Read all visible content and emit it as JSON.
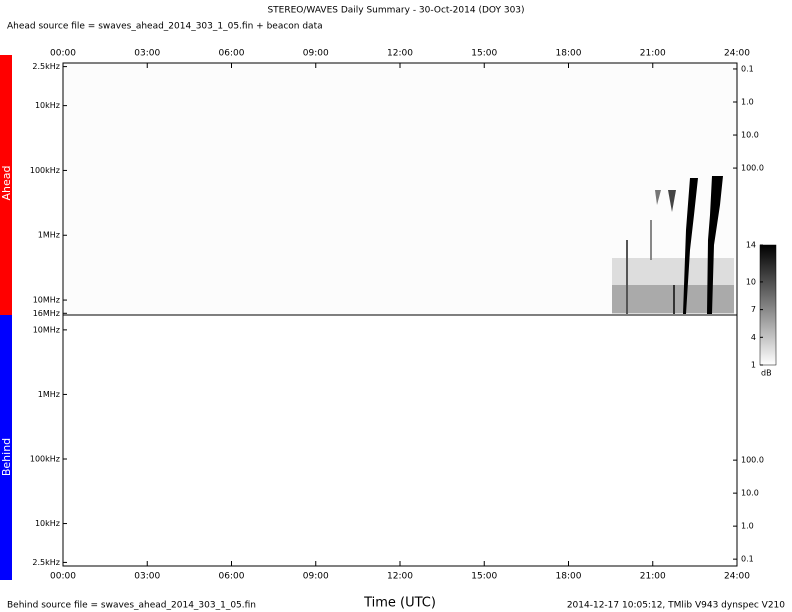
{
  "title": "STEREO/WAVES Daily Summary - 30-Oct-2014 (DOY 303)",
  "ahead_source": "Ahead source file = swaves_ahead_2014_303_1_05.fin + beacon data",
  "behind_source": "Behind source file = swaves_ahead_2014_303_1_05.fin",
  "footer": "2014-12-17 10:05:12, TMlib V943 dynspec V210",
  "chart_data": [
    {
      "type": "spectrogram",
      "name": "Ahead",
      "log": true,
      "xlim": [
        0,
        24
      ],
      "xticks": [
        {
          "value": 0,
          "label": "00:00"
        },
        {
          "value": 3,
          "label": "03:00"
        },
        {
          "value": 6,
          "label": "06:00"
        },
        {
          "value": 9,
          "label": "09:00"
        },
        {
          "value": 12,
          "label": "12:00"
        },
        {
          "value": 15,
          "label": "15:00"
        },
        {
          "value": 18,
          "label": "18:00"
        },
        {
          "value": 21,
          "label": "21:00"
        },
        {
          "value": 24,
          "label": "24:00"
        }
      ],
      "ylim": [
        2.2,
        17000
      ],
      "yticks": [
        {
          "value": 2.5,
          "label": "2.5kHz"
        },
        {
          "value": 10,
          "label": "10kHz"
        },
        {
          "value": 100,
          "label": "100kHz"
        },
        {
          "value": 1000,
          "label": "1MHz"
        },
        {
          "value": 10000,
          "label": "10MHz"
        },
        {
          "value": 16000,
          "label": "16MHz"
        }
      ],
      "y2lim": [
        0.066,
        2800000
      ],
      "y2ticks": [
        0.1,
        {
          "value": 1,
          "label": "1.0"
        },
        {
          "value": 10,
          "label": "10.0"
        },
        {
          "value": 100,
          "label": "100.0"
        }
      ],
      "colorbar": {
        "lim": [
          1,
          14
        ],
        "ticks": [
          1,
          4,
          7,
          10,
          14
        ],
        "label": "dB"
      }
    },
    {
      "type": "spectrogram",
      "name": "Behind",
      "log": true,
      "xlabel": "Time (UTC)",
      "xlim": [
        0,
        24
      ],
      "xticks": [
        {
          "value": 0,
          "label": "00:00"
        },
        {
          "value": 3,
          "label": "03:00"
        },
        {
          "value": 6,
          "label": "06:00"
        },
        {
          "value": 9,
          "label": "09:00"
        },
        {
          "value": 12,
          "label": "12:00"
        },
        {
          "value": 15,
          "label": "15:00"
        },
        {
          "value": 18,
          "label": "18:00"
        },
        {
          "value": 21,
          "label": "21:00"
        },
        {
          "value": 24,
          "label": "24:00"
        }
      ],
      "ylim": [
        17000,
        2.2
      ],
      "yticks": [
        {
          "value": 10000,
          "label": "10MHz"
        },
        {
          "value": 1000,
          "label": "1MHz"
        },
        {
          "value": 100,
          "label": "100kHz"
        },
        {
          "value": 10,
          "label": "10kHz"
        },
        {
          "value": 2.5,
          "label": "2.5kHz"
        }
      ],
      "y2lim": [
        2500000,
        0.062
      ],
      "y2ticks": [
        {
          "value": 100,
          "label": "100.0"
        },
        {
          "value": 10,
          "label": "10.0"
        },
        {
          "value": 1,
          "label": "1.0"
        },
        0.1
      ]
    }
  ]
}
